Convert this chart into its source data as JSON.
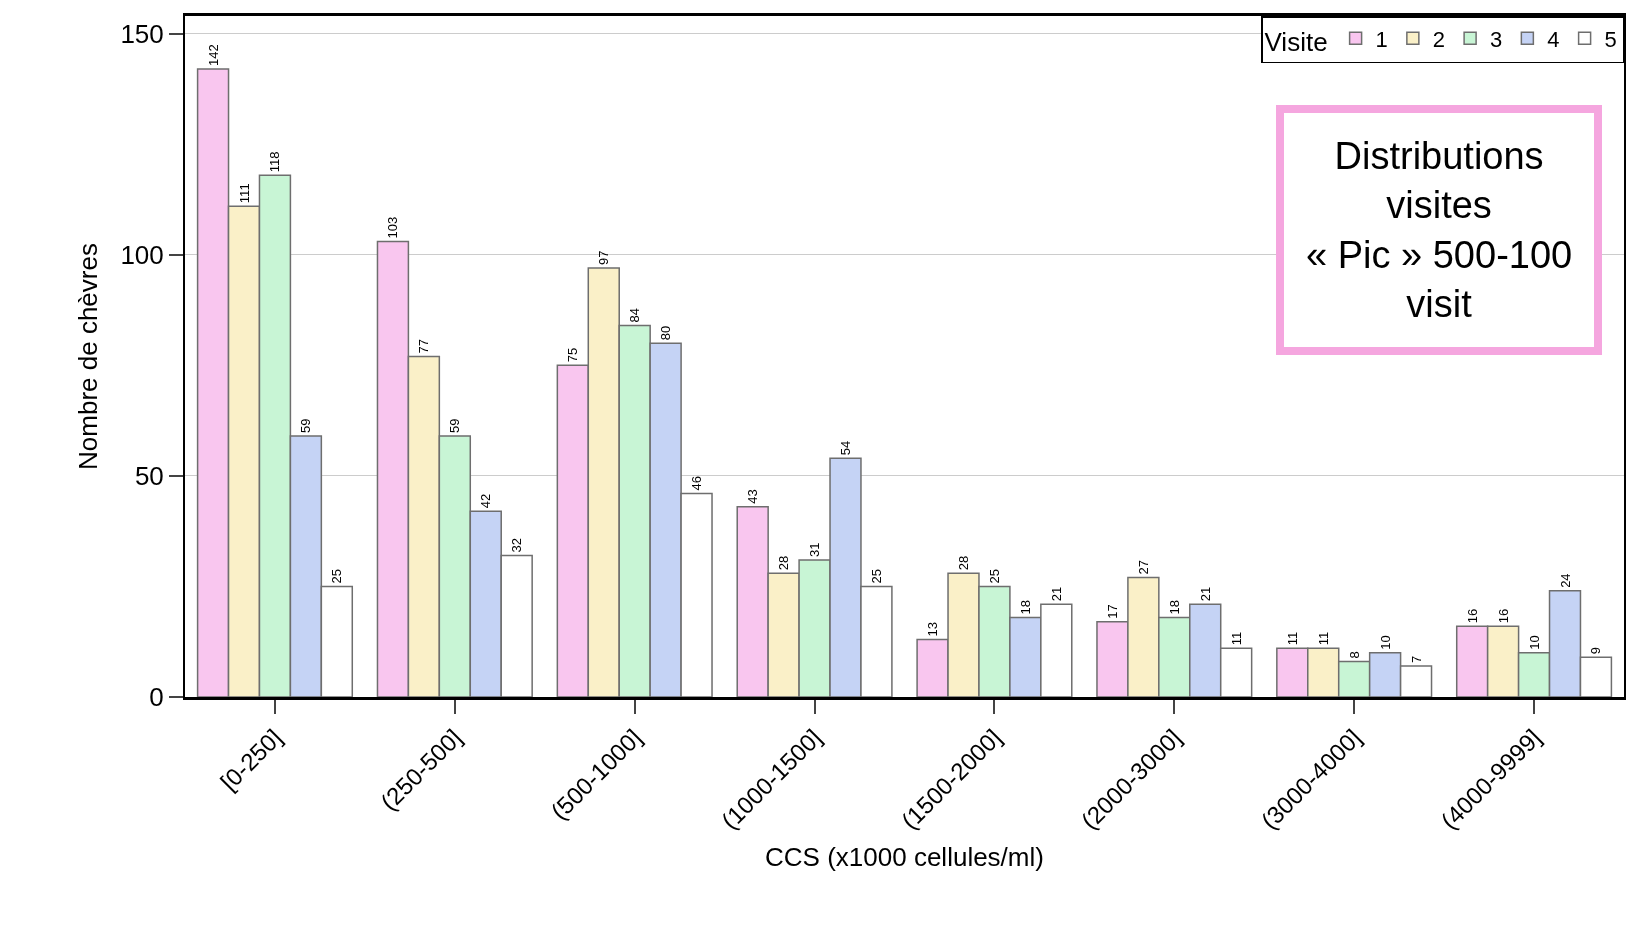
{
  "chart_data": {
    "type": "bar",
    "xlabel": "CCS (x1000 cellules/ml)",
    "ylabel": "Nombre de chèvres",
    "legend_title": "Visite",
    "categories": [
      "[0-250]",
      "(250-500]",
      "(500-1000]",
      "(1000-1500]",
      "(1500-2000]",
      "(2000-3000]",
      "(3000-4000]",
      "(4000-9999]"
    ],
    "series": [
      {
        "name": "1",
        "color": "#f9c6ef",
        "values": [
          142,
          103,
          75,
          43,
          13,
          17,
          11,
          16
        ]
      },
      {
        "name": "2",
        "color": "#faf0c8",
        "values": [
          111,
          77,
          97,
          28,
          28,
          27,
          11,
          16
        ]
      },
      {
        "name": "3",
        "color": "#c8f5d5",
        "values": [
          118,
          59,
          84,
          31,
          25,
          18,
          8,
          10
        ]
      },
      {
        "name": "4",
        "color": "#c5d3f5",
        "values": [
          59,
          42,
          80,
          54,
          18,
          21,
          10,
          24
        ]
      },
      {
        "name": "5",
        "color": "#ffffff",
        "values": [
          25,
          32,
          46,
          25,
          21,
          11,
          7,
          9
        ]
      }
    ],
    "ylim": [
      0,
      154
    ],
    "yticks": [
      0,
      50,
      100,
      150
    ],
    "grid": "y",
    "legend": "top right",
    "data_labels": true,
    "annotations": [
      "Distributions\nvisites\n« Pic » 500-100\nvisit"
    ]
  }
}
